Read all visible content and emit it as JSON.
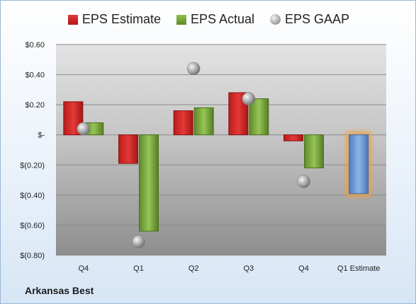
{
  "colors": {
    "estimate": "#c62828",
    "actual": "#79a93e",
    "estimate_future": "#6f9fd8",
    "highlight": "#f0a040",
    "gaap": "#9a9a9a"
  },
  "company": "Arkansas Best",
  "legend": [
    {
      "label": "EPS Estimate",
      "icon": "red-square"
    },
    {
      "label": "EPS Actual",
      "icon": "green-square"
    },
    {
      "label": "EPS GAAP",
      "icon": "gray-sphere"
    }
  ],
  "chart_data": {
    "type": "bar",
    "categories": [
      "Q4",
      "Q1",
      "Q2",
      "Q3",
      "Q4",
      "Q1 Estimate"
    ],
    "series": [
      {
        "name": "EPS Estimate",
        "values": [
          0.22,
          -0.19,
          0.16,
          0.28,
          -0.04,
          -0.39
        ]
      },
      {
        "name": "EPS Actual",
        "values": [
          0.08,
          -0.64,
          0.18,
          0.24,
          -0.22,
          null
        ]
      },
      {
        "name": "EPS GAAP",
        "values": [
          0.04,
          -0.71,
          0.44,
          0.24,
          -0.31,
          null
        ]
      }
    ],
    "ylim": [
      -0.8,
      0.6
    ],
    "yticks": [
      0.6,
      0.4,
      0.2,
      0,
      -0.2,
      -0.4,
      -0.6,
      -0.8
    ],
    "ytick_labels": [
      "$0.60",
      "$0.40",
      "$0.20",
      "$-",
      "$(0.20)",
      "$(0.40)",
      "$(0.60)",
      "$(0.80)"
    ],
    "grid": true,
    "legend_position": "top"
  }
}
